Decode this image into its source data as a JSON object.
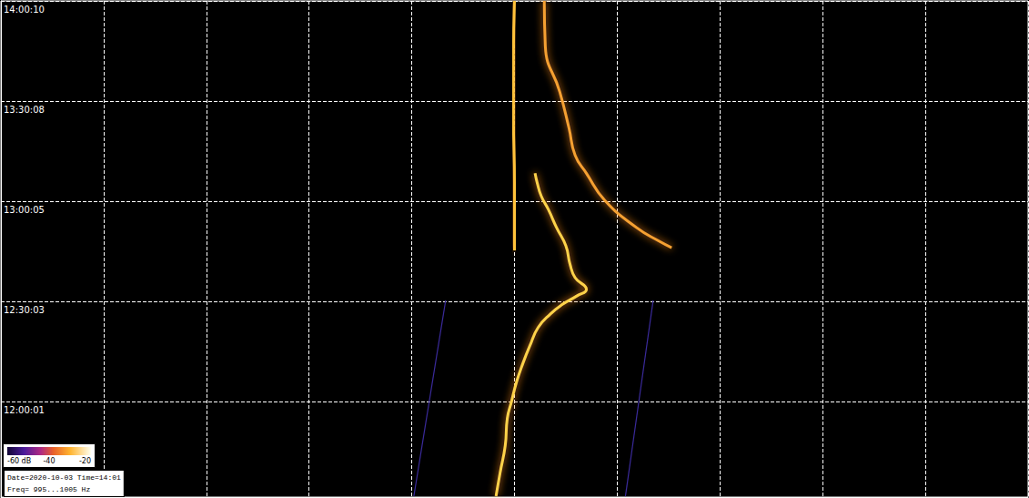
{
  "chart_data": {
    "type": "line",
    "xlim": [
      995,
      1005
    ],
    "xticks": [
      995,
      996,
      997,
      998,
      999,
      1000,
      1001,
      1002,
      1003,
      1004,
      1005
    ],
    "ylim": [
      41490,
      50410
    ],
    "yticks": [
      {
        "value": 43201,
        "label": "12:00:01"
      },
      {
        "value": 45003,
        "label": "12:30:03"
      },
      {
        "value": 46805,
        "label": "13:00:05"
      },
      {
        "value": 48608,
        "label": "13:30:08"
      },
      {
        "value": 50410,
        "label": "14:00:10"
      }
    ],
    "grid": true,
    "tick_labels": "y",
    "line_style": "solid",
    "series": [
      {
        "color": "#ffd24a",
        "x": [
          999.82,
          999.86,
          999.91,
          999.93,
          999.97,
          1000.02,
          1000.08,
          1000.15,
          1000.23,
          1000.35,
          1000.46,
          1000.61,
          1000.7,
          1000.59,
          1000.54,
          1000.5,
          1000.41,
          1000.33,
          1000.26,
          1000.22,
          1000.2
        ],
        "values": [
          41505,
          41929,
          42418,
          42907,
          43201,
          43560,
          43886,
          44212,
          44538,
          44783,
          44946,
          45109,
          45223,
          45435,
          45680,
          46006,
          46332,
          46659,
          46903,
          47148,
          47311
        ]
      },
      {
        "color": "#ffc23a",
        "x": [
          1000.0,
          1000.0,
          999.99,
          999.99,
          1000.0
        ],
        "values": [
          45925,
          47148,
          48290,
          49431,
          50410
        ]
      },
      {
        "color": "#f5a030",
        "x": [
          1000.29,
          1000.3,
          1000.44,
          1000.53,
          1000.59,
          1000.7,
          1000.88,
          1001.19,
          1001.41,
          1001.53
        ],
        "values": [
          50410,
          49595,
          48779,
          48127,
          47637,
          47311,
          46822,
          46332,
          46088,
          45974
        ]
      },
      {
        "color": "#3a2a9a",
        "x": [
          999.02,
          999.33
        ],
        "values": [
          41505,
          45028
        ]
      },
      {
        "color": "#3a2a9a",
        "x": [
          1001.08,
          1001.35
        ],
        "values": [
          41505,
          45028
        ]
      }
    ],
    "colorbar": {
      "range": [
        -60,
        -20
      ],
      "ticks": [
        {
          "value": -60,
          "label": "-60 dB"
        },
        -40,
        -20
      ]
    },
    "annotations": [
      "Date=2020-10-03 Time=14:01",
      "Freq= 995...1005 Hz"
    ]
  }
}
